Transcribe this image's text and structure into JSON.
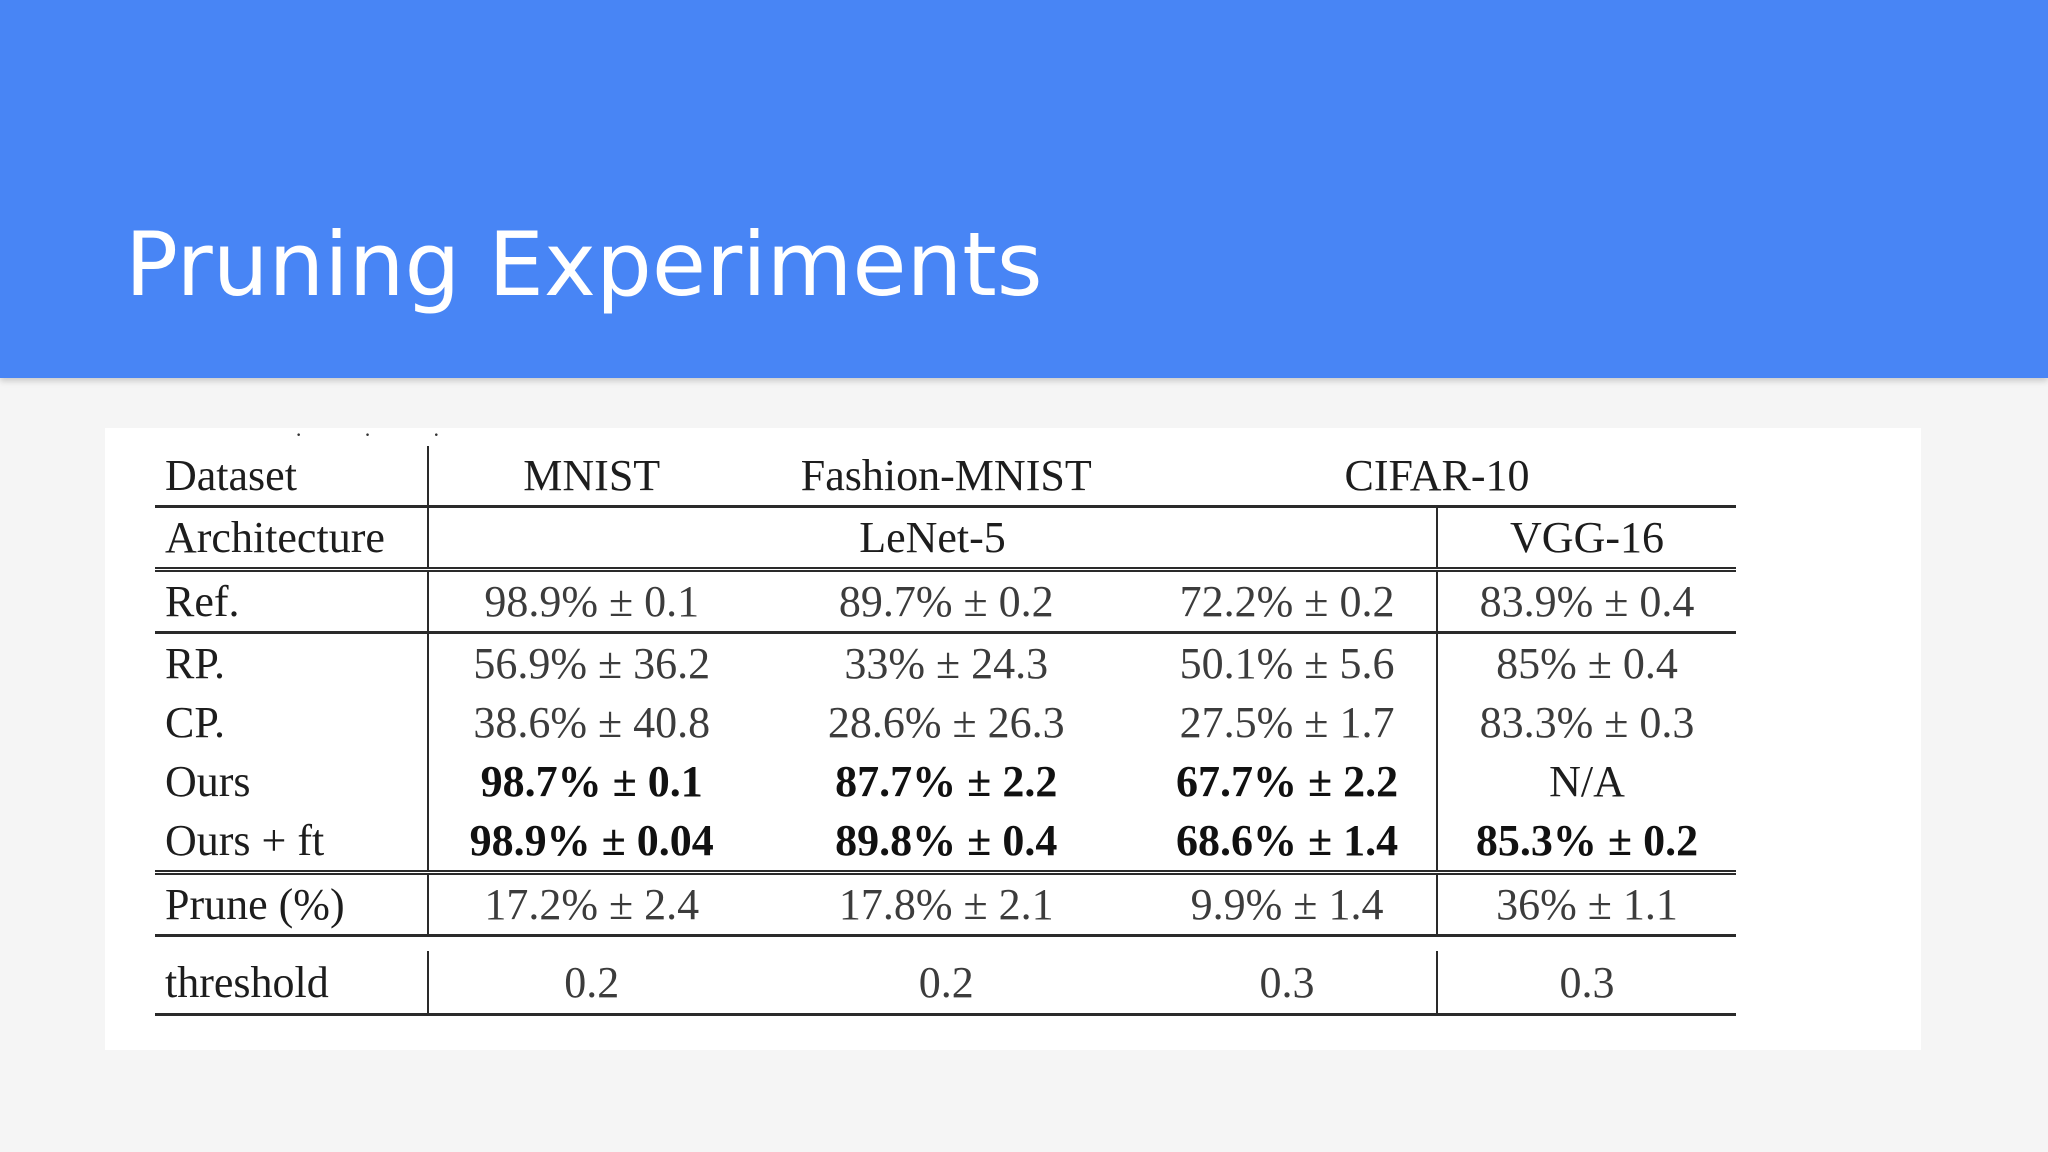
{
  "slide": {
    "title": "Pruning Experiments"
  },
  "table": {
    "top_marks": "· · ·",
    "header_dataset_label": "Dataset",
    "datasets": [
      "MNIST",
      "Fashion-MNIST",
      "CIFAR-10"
    ],
    "header_arch_label": "Architecture",
    "architectures": [
      "LeNet-5",
      "VGG-16"
    ],
    "rows": [
      {
        "label": "Ref.",
        "values": [
          "98.9% ± 0.1",
          "89.7% ± 0.2",
          "72.2% ± 0.2",
          "83.9% ± 0.4"
        ],
        "bold": false
      },
      {
        "label": "RP.",
        "values": [
          "56.9% ± 36.2",
          "33% ± 24.3",
          "50.1% ± 5.6",
          "85% ± 0.4"
        ],
        "bold": false
      },
      {
        "label": "CP.",
        "values": [
          "38.6% ± 40.8",
          "28.6% ± 26.3",
          "27.5% ± 1.7",
          "83.3% ± 0.3"
        ],
        "bold": false
      },
      {
        "label": "Ours",
        "values": [
          "98.7% ± 0.1",
          "87.7% ± 2.2",
          "67.7% ± 2.2",
          "N/A"
        ],
        "bold": true
      },
      {
        "label": "Ours + ft",
        "values": [
          "98.9% ± 0.04",
          "89.8% ± 0.4",
          "68.6% ± 1.4",
          "85.3% ± 0.2"
        ],
        "bold": true
      },
      {
        "label": "Prune (%)",
        "values": [
          "17.2% ± 2.4",
          "17.8% ± 2.1",
          "9.9% ± 1.4",
          "36% ± 1.1"
        ],
        "bold": false
      },
      {
        "label": "threshold",
        "values": [
          "0.2",
          "0.2",
          "0.3",
          "0.3"
        ],
        "bold": false
      }
    ]
  }
}
